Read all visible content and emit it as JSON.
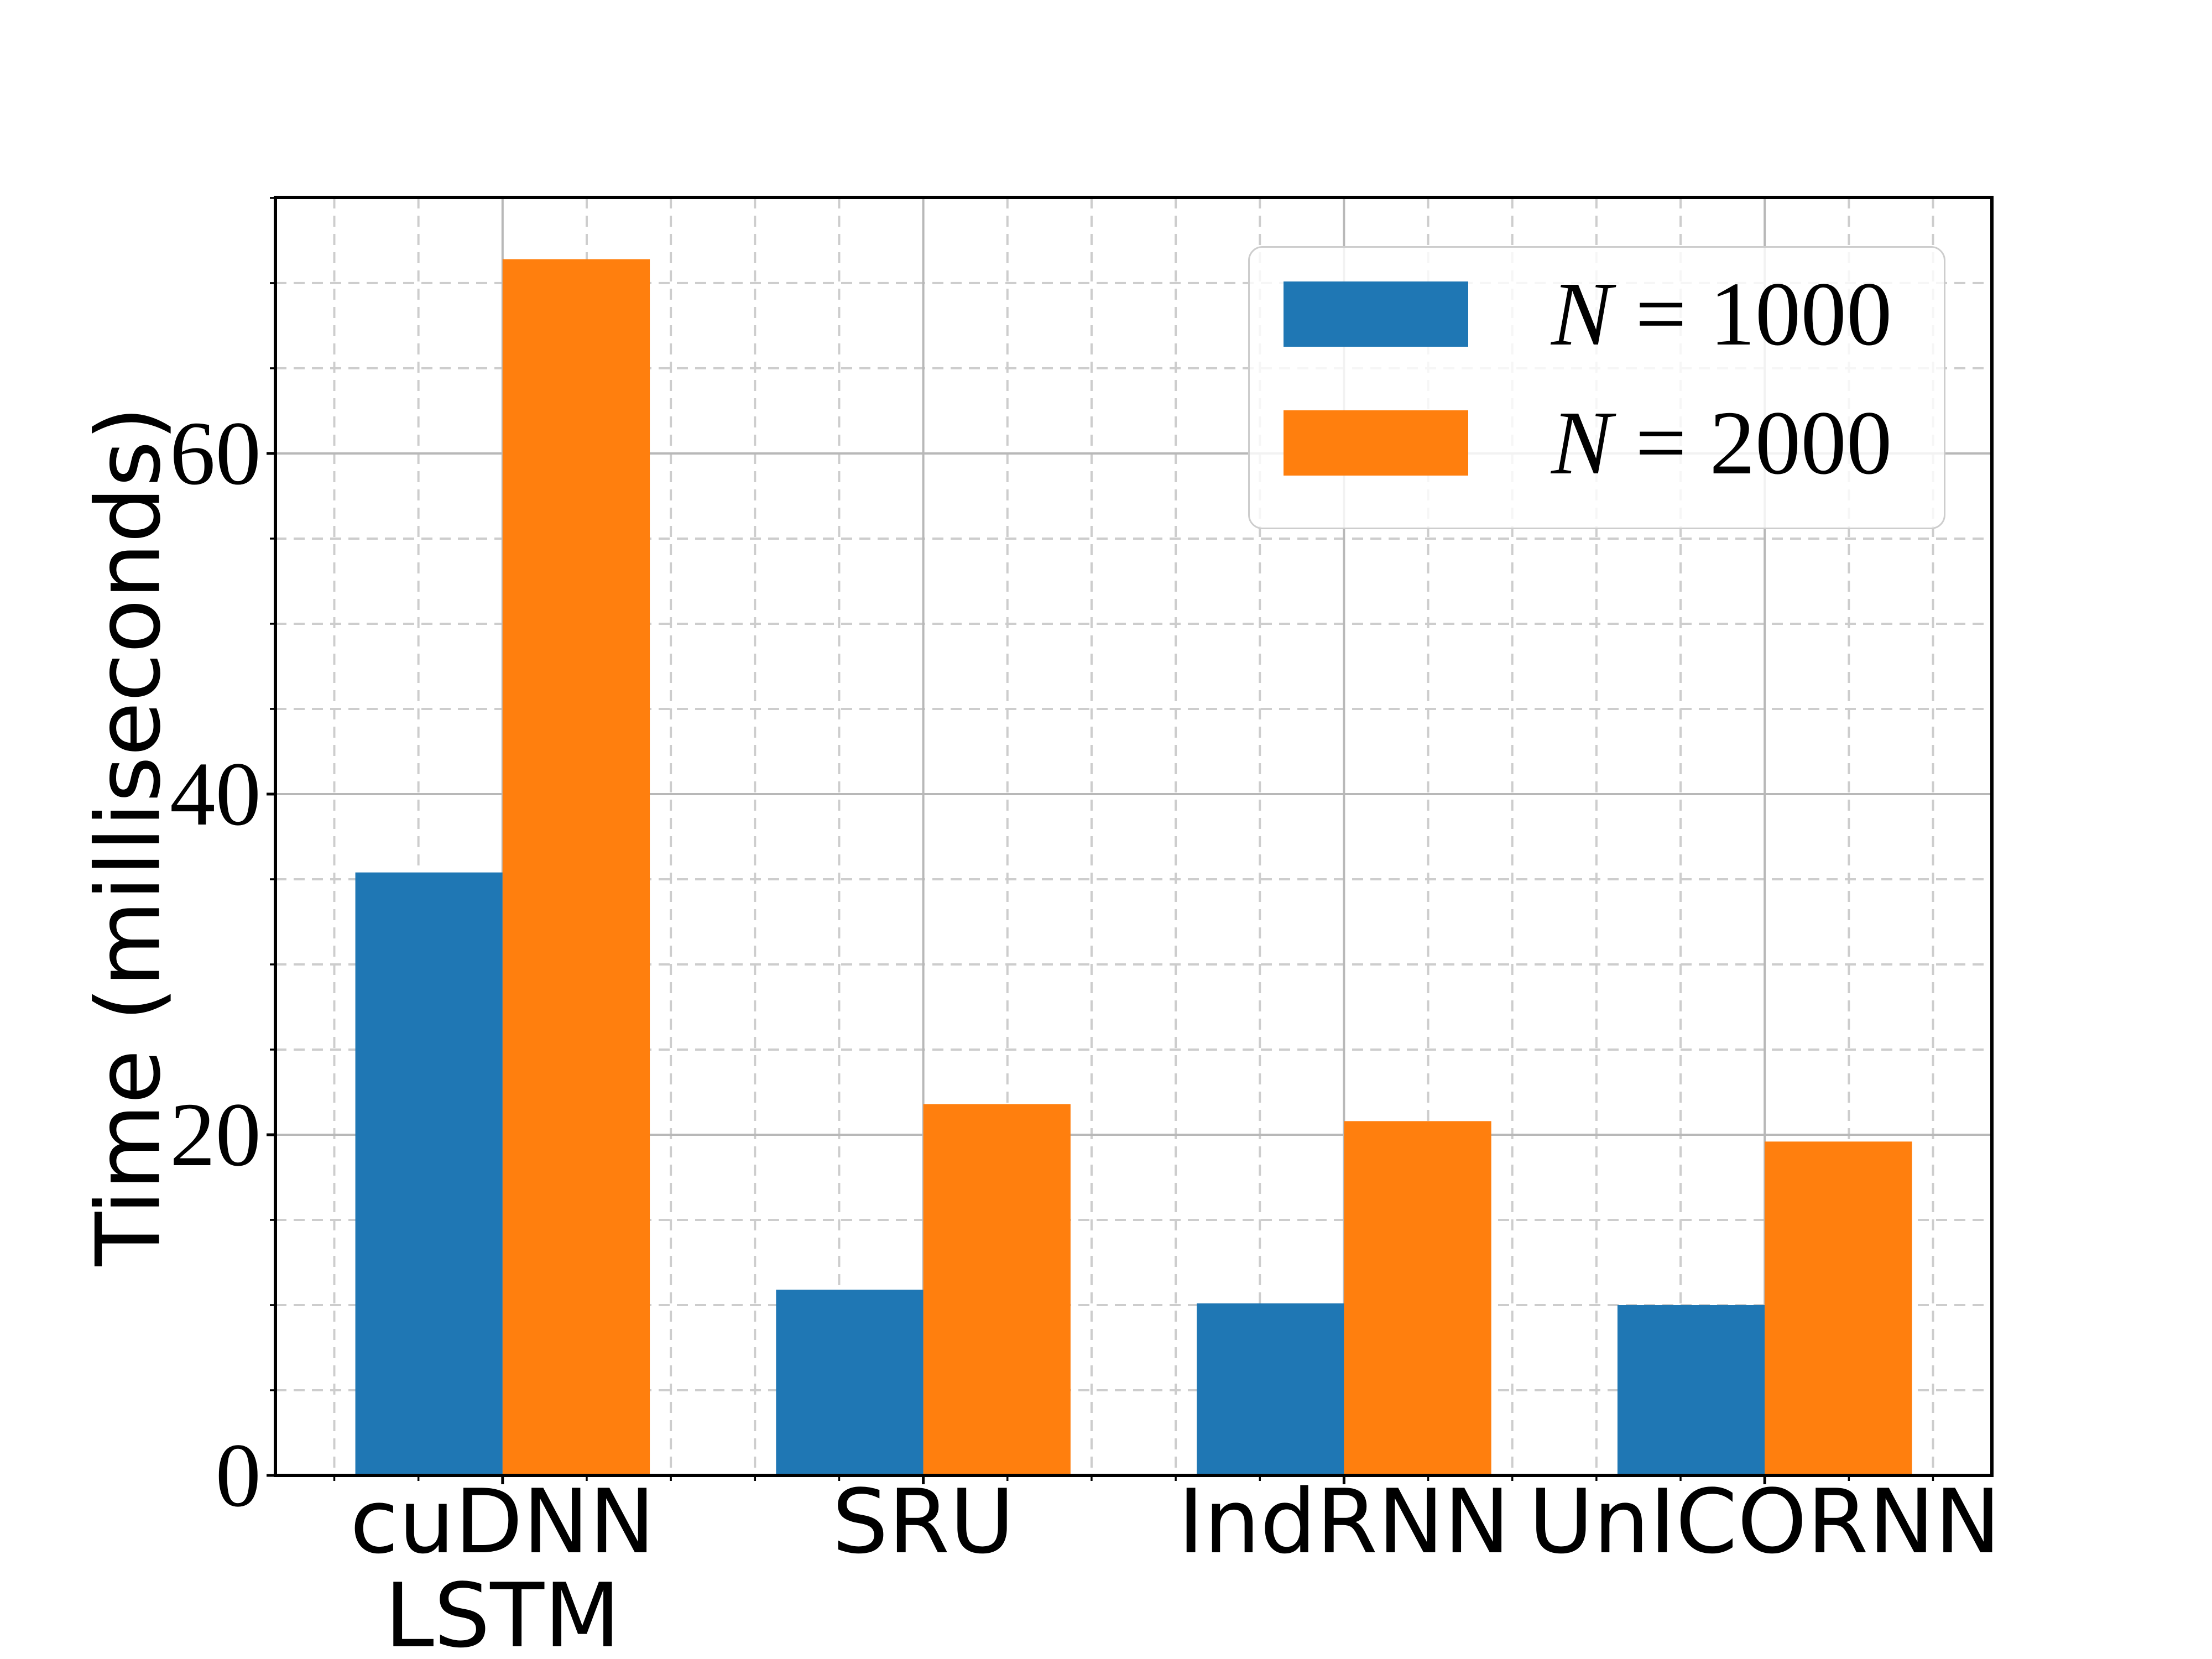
{
  "figure": {
    "background": "#ffffff"
  },
  "y_axis": {
    "label": "Time (milliseconds)",
    "tick_labels": [
      "0",
      "20",
      "40",
      "60"
    ],
    "tick_values": [
      0,
      20,
      40,
      60
    ],
    "minor_step": 5,
    "limit": [
      0,
      75
    ]
  },
  "x_axis": {
    "categories": [
      "cuDNN LSTM",
      "SRU",
      "IndRNN",
      "UnICORNN"
    ],
    "category_label_lines": [
      [
        "cuDNN",
        "LSTM"
      ],
      [
        "SRU"
      ],
      [
        "IndRNN"
      ],
      [
        "UnICORNN"
      ]
    ],
    "minor_step": 0.2
  },
  "legend": {
    "entries": [
      {
        "label": "N = 1000",
        "variable": "N",
        "rest": "= 1000",
        "color": "#1f77b4"
      },
      {
        "label": "N = 2000",
        "variable": "N",
        "rest": "= 2000",
        "color": "#ff7f0e"
      }
    ]
  },
  "chart_data": {
    "type": "bar",
    "title": "",
    "categories": [
      "cuDNN LSTM",
      "SRU",
      "IndRNN",
      "UnICORNN"
    ],
    "series": [
      {
        "name": "N = 1000",
        "color": "#1f77b4",
        "values": [
          35.4,
          10.9,
          10.1,
          10.0
        ]
      },
      {
        "name": "N = 2000",
        "color": "#ff7f0e",
        "values": [
          71.4,
          21.8,
          20.8,
          19.6
        ]
      }
    ],
    "xlabel": "",
    "ylabel": "Time (milliseconds)",
    "ylim": [
      0,
      75
    ],
    "bar_width": 0.35,
    "grid": {
      "major": true,
      "minor": true,
      "major_color": "#b8b8b8",
      "minor_color": "#cdcdcd"
    },
    "legend_position": "upper right"
  }
}
